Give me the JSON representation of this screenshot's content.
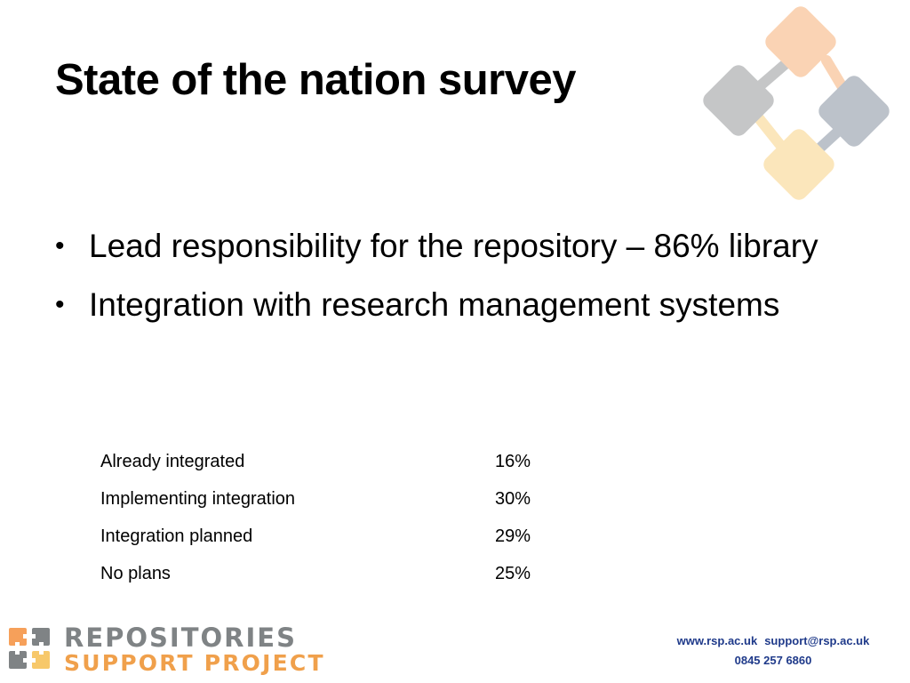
{
  "slide": {
    "title": "State of the nation survey",
    "bullets": [
      {
        "text": "Lead responsibility for the repository – 86% library"
      },
      {
        "text": "Integration with research management systems"
      }
    ],
    "stats": [
      {
        "label": "Already integrated",
        "value": "16%"
      },
      {
        "label": "Implementing integration",
        "value": "30%"
      },
      {
        "label": "Integration planned",
        "value": "29%"
      },
      {
        "label": "No plans",
        "value": "25%"
      }
    ]
  },
  "footer": {
    "logo": {
      "line1": "REPOSITORIES",
      "line2": "SUPPORT PROJECT"
    },
    "contact": {
      "website": "www.rsp.ac.uk",
      "email": "support@rsp.ac.uk",
      "phone": "0845 257 6860"
    }
  },
  "colors": {
    "orange": "#f6a05a",
    "grey": "#7f8385",
    "slate": "#6c7a8c",
    "yellow": "#f7c86a",
    "link_blue": "#1f3a8a"
  },
  "icons": {
    "decor": "interlocking-diamonds-icon",
    "logo_mark": "rsp-logo-mark-icon"
  }
}
